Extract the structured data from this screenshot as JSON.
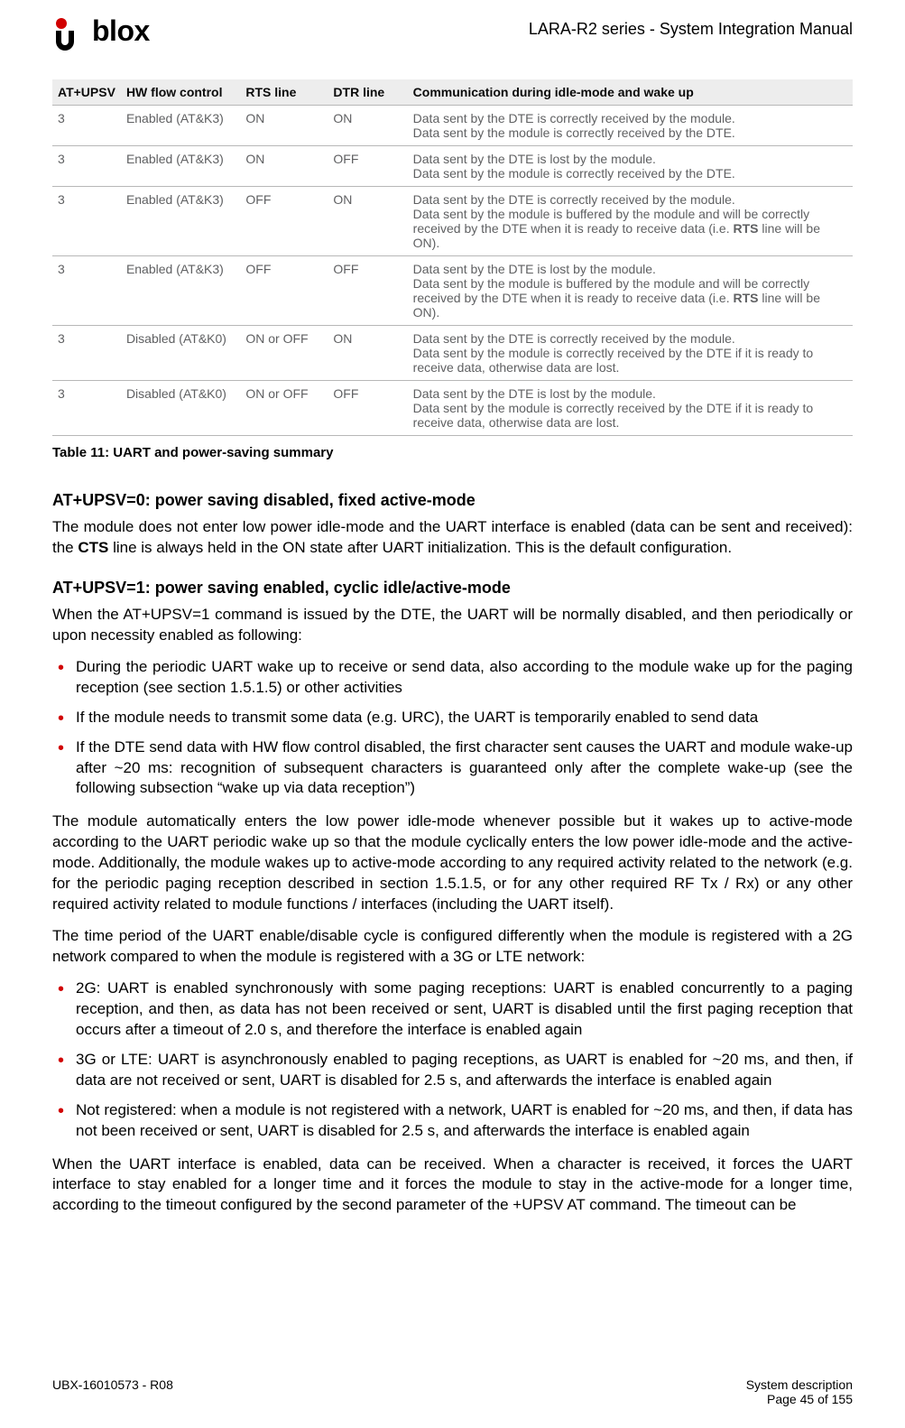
{
  "header": {
    "brand": "blox",
    "docref": "LARA-R2 series - System Integration Manual"
  },
  "logo": {
    "dot_color": "#d10000",
    "fg": "#000000"
  },
  "table": {
    "headers": [
      "AT+UPSV",
      "HW flow control",
      "RTS line",
      "DTR line",
      "Communication during idle-mode and wake up"
    ],
    "rows": [
      {
        "c": [
          "3",
          "Enabled (AT&K3)",
          "ON",
          "ON"
        ],
        "comm": [
          "Data sent by the DTE is correctly received by the module.",
          "Data sent by the module is correctly received by the DTE."
        ]
      },
      {
        "c": [
          "3",
          "Enabled (AT&K3)",
          "ON",
          "OFF"
        ],
        "comm": [
          "Data sent by the DTE is lost by the module.",
          "Data sent by the module is correctly received by the DTE."
        ]
      },
      {
        "c": [
          "3",
          "Enabled (AT&K3)",
          "OFF",
          "ON"
        ],
        "comm": [
          "Data sent by the DTE is correctly received by the module.",
          "Data sent by the module is buffered by the module and will be correctly received by the DTE when it is ready to receive data (i.e. <b>RTS</b> line will be ON)."
        ]
      },
      {
        "c": [
          "3",
          "Enabled (AT&K3)",
          "OFF",
          "OFF"
        ],
        "comm": [
          "Data sent by the DTE is lost by the module.",
          "Data sent by the module is buffered by the module and will be correctly received by the DTE when it is ready to receive data (i.e. <b>RTS</b> line will be ON)."
        ]
      },
      {
        "c": [
          "3",
          "Disabled (AT&K0)",
          "ON or OFF",
          "ON"
        ],
        "comm": [
          "Data sent by the DTE is correctly received by the module.",
          "Data sent by the module is correctly received by the DTE if it is ready to receive data, otherwise data are lost."
        ]
      },
      {
        "c": [
          "3",
          "Disabled (AT&K0)",
          "ON or OFF",
          "OFF"
        ],
        "comm": [
          "Data sent by the DTE is lost by the module.",
          "Data sent by the module is correctly received by the DTE if it is ready to receive data, otherwise data are lost."
        ]
      }
    ],
    "caption": "Table 11: UART and power-saving summary"
  },
  "sec1": {
    "title": "AT+UPSV=0: power saving disabled, fixed active-mode",
    "para_html": "The module does not enter low power idle-mode and the UART interface is enabled (data can be sent and received): the <b>CTS</b> line is always held in the ON state after UART initialization. This is the default configuration."
  },
  "sec2": {
    "title": "AT+UPSV=1: power saving enabled, cyclic idle/active-mode",
    "intro": "When the AT+UPSV=1 command is issued by the DTE, the UART will be normally disabled, and then periodically or upon necessity enabled as following:",
    "bullets1": [
      "During the periodic UART wake up to receive or send data, also according to the module wake up for the paging reception (see section 1.5.1.5) or other activities",
      "If the module needs to transmit some data (e.g. URC), the UART is temporarily enabled to send data",
      "If the DTE send data with HW flow control disabled, the first character sent causes the UART and module wake-up after ~20 ms: recognition of subsequent characters is guaranteed only after the complete wake-up (see the following subsection “wake up via data reception”)"
    ],
    "para2": "The module automatically enters the low power idle-mode whenever possible but it wakes up to active-mode according to the UART periodic wake up so that the module cyclically enters the low power idle-mode and the active-mode. Additionally, the module wakes up to active-mode according to any required activity related to the network (e.g. for the periodic paging reception described in section 1.5.1.5, or for any other required RF Tx / Rx) or any other required activity related to module functions / interfaces (including the UART itself).",
    "para3": "The time period of the UART enable/disable cycle is configured differently when the module is registered with a 2G network compared to when the module is registered with a 3G or LTE network:",
    "bullets2": [
      "2G: UART is enabled synchronously with some paging receptions: UART is enabled concurrently to a paging reception, and then, as data has not been received or sent, UART is disabled until the first paging reception that occurs after a timeout of 2.0 s, and therefore the interface is enabled again",
      "3G or LTE: UART is asynchronously enabled to paging receptions, as UART is enabled for ~20 ms, and then, if data are not received or sent, UART is disabled for 2.5 s, and afterwards the interface is enabled again",
      "Not registered: when a module is not registered with a network, UART is enabled for ~20 ms, and then, if data has not been received or sent, UART is disabled for 2.5 s, and afterwards the interface is enabled again"
    ],
    "para4": "When the UART interface is enabled, data can be received. When a character is received, it forces the UART interface to stay enabled for a longer time and it forces the module to stay in the active-mode for a longer time, according to the timeout configured by the second parameter of the +UPSV AT command. The timeout can be"
  },
  "footer": {
    "left": "UBX-16010573 - R08",
    "right1": "System description",
    "right2": "Page 45 of 155"
  }
}
